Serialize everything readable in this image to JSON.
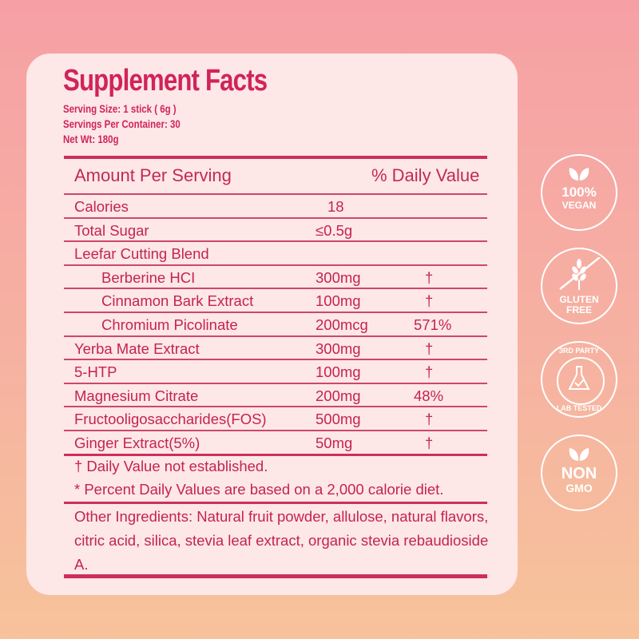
{
  "header": {
    "title": "Supplement Facts",
    "serving_size": "Serving Size: 1 stick ( 6g )",
    "servings_per_container": "Servings Per Container: 30",
    "net_wt": "Net Wt: 180g"
  },
  "table": {
    "col_amount": "Amount Per Serving",
    "col_dv": "% Daily Value",
    "rows": [
      {
        "name": "Calories",
        "amount": "18",
        "dv": "",
        "indent": false
      },
      {
        "name": "Total Sugar",
        "amount": "≤0.5g",
        "dv": "",
        "indent": false
      },
      {
        "name": "Leefar Cutting Blend",
        "amount": "",
        "dv": "",
        "indent": false
      },
      {
        "name": "Berberine HCI",
        "amount": "300mg",
        "dv": "†",
        "indent": true
      },
      {
        "name": "Cinnamon Bark Extract",
        "amount": "100mg",
        "dv": "†",
        "indent": true
      },
      {
        "name": "Chromium Picolinate",
        "amount": "200mcg",
        "dv": "571%",
        "indent": true
      },
      {
        "name": "Yerba Mate Extract",
        "amount": "300mg",
        "dv": "†",
        "indent": false
      },
      {
        "name": "5-HTP",
        "amount": "100mg",
        "dv": "†",
        "indent": false
      },
      {
        "name": "Magnesium Citrate",
        "amount": "200mg",
        "dv": "48%",
        "indent": false
      },
      {
        "name": "Fructooligosaccharides(FOS)",
        "amount": "500mg",
        "dv": "†",
        "indent": false
      },
      {
        "name": "Ginger Extract(5%)",
        "amount": "50mg",
        "dv": "†",
        "indent": false
      }
    ]
  },
  "footnotes": {
    "dagger": "† Daily Value not established.",
    "percent": "* Percent Daily Values are based on a 2,000 calorie diet."
  },
  "other_ingredients": "Other Ingredients: Natural fruit powder, allulose, natural flavors, citric acid, silica, stevia leaf extract, organic stevia rebaudioside A.",
  "badges": [
    {
      "icon": "leaf-icon",
      "line1": "100%",
      "line2": "VEGAN"
    },
    {
      "icon": "wheat-crossed-icon",
      "line1": "GLUTEN",
      "line2": "FREE"
    },
    {
      "icon": "flask-check-icon",
      "line1": "3RD PARTY",
      "line2": "LAB TESTED"
    },
    {
      "icon": "leaf-icon",
      "line1": "NON",
      "line2": "GMO"
    }
  ],
  "colors": {
    "accent": "#c4244f",
    "card": "#fde7e7"
  }
}
